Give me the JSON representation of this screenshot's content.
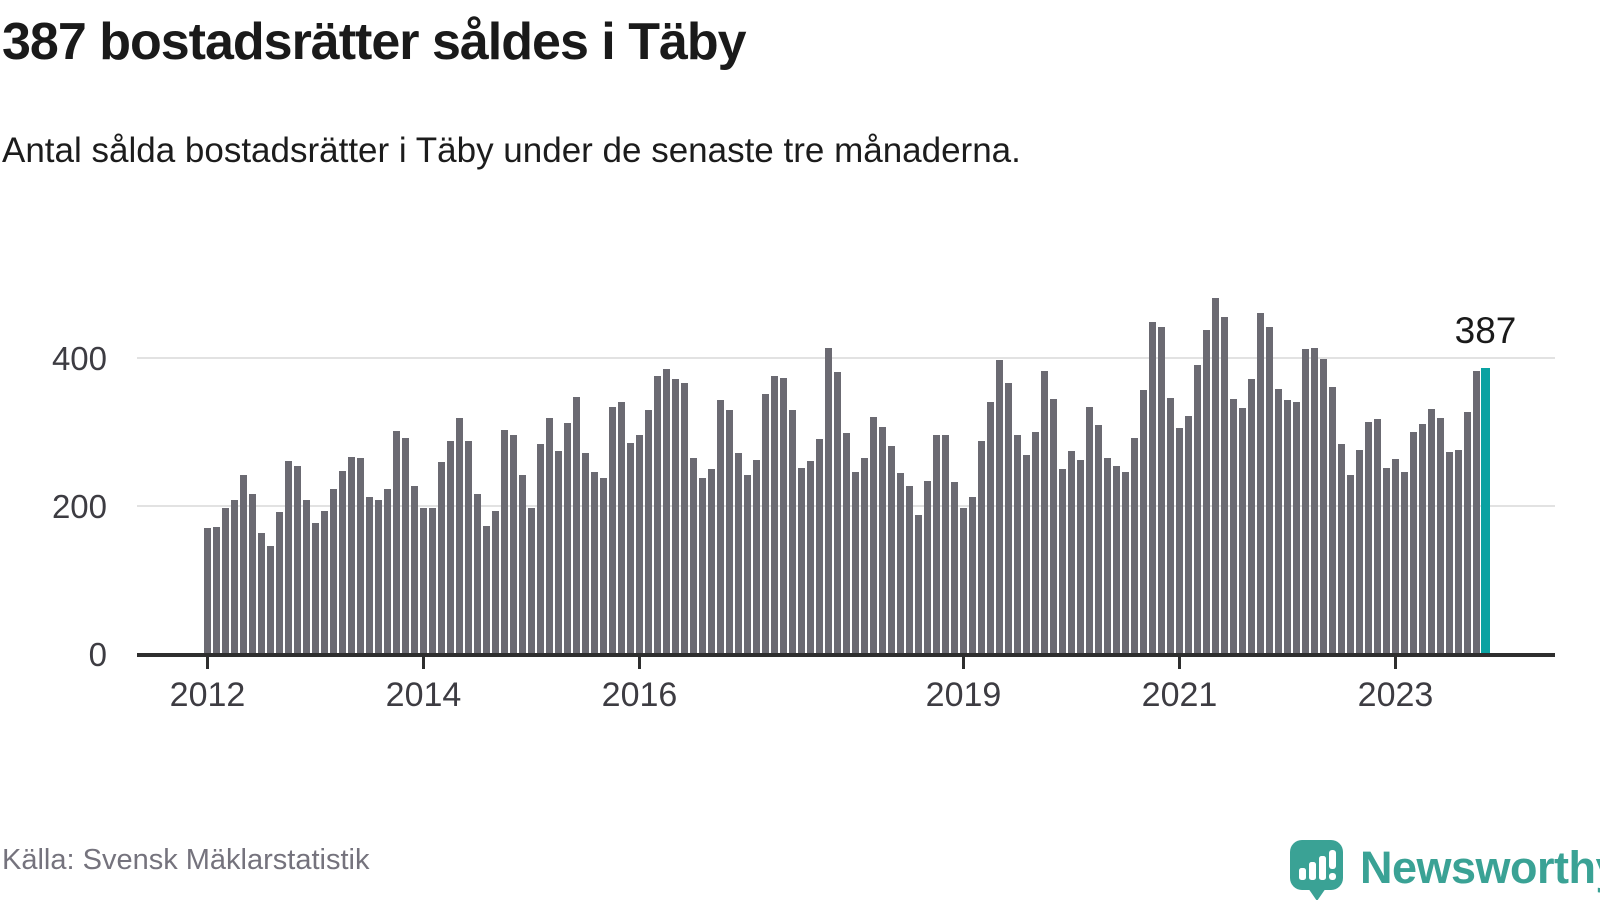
{
  "title": "387 bostadsrätter såldes i Täby",
  "subtitle": "Antal sålda bostadsrätter i Täby under de senaste tre månaderna.",
  "annotation": {
    "label": "387"
  },
  "source": "Källa: Svensk Mäklarstatistik",
  "logo": {
    "brand": "Newsworthy",
    "icon": "bar-chart-speech-bubble-icon"
  },
  "colors": {
    "bar": "#6b6a72",
    "highlight": "#0aa2a2",
    "grid": "#e2e2e2",
    "axis": "#2e2e2e",
    "text": "#1a1a1a",
    "tick_text": "#3d3c42",
    "source_text": "#75737d",
    "logo": "#3aa295"
  },
  "chart_data": {
    "type": "bar",
    "title": "387 bostadsrätter såldes i Täby",
    "subtitle": "Antal sålda bostadsrätter i Täby under de senaste tre månaderna.",
    "x_unit": "month",
    "start_month": "2012-01",
    "end_month": "2023-11",
    "ylim": [
      0,
      500
    ],
    "y_ticks": [
      0,
      200,
      400
    ],
    "y_tick_labels": [
      "0",
      "200",
      "400"
    ],
    "x_tick_labels": [
      "2012",
      "2014",
      "2016",
      "2019",
      "2021",
      "2023"
    ],
    "x_tick_month_indices": [
      0,
      24,
      48,
      84,
      108,
      132
    ],
    "grid": "horizontal-only",
    "legend": "none",
    "highlight_index": 142,
    "highlight_value_label": "387",
    "values": [
      170,
      171,
      196,
      207,
      241,
      215,
      163,
      145,
      191,
      260,
      254,
      208,
      176,
      192,
      223,
      247,
      266,
      264,
      211,
      207,
      222,
      301,
      292,
      226,
      196,
      197,
      259,
      287,
      318,
      288,
      216,
      172,
      193,
      302,
      295,
      242,
      197,
      283,
      319,
      274,
      312,
      347,
      271,
      245,
      237,
      334,
      340,
      285,
      296,
      330,
      376,
      385,
      372,
      366,
      264,
      237,
      249,
      343,
      329,
      271,
      242,
      262,
      351,
      375,
      373,
      330,
      251,
      261,
      290,
      413,
      381,
      298,
      246,
      265,
      320,
      307,
      280,
      244,
      227,
      187,
      233,
      295,
      295,
      232,
      196,
      211,
      287,
      341,
      397,
      366,
      295,
      268,
      299,
      382,
      345,
      250,
      274,
      262,
      333,
      309,
      265,
      254,
      246,
      292,
      357,
      449,
      442,
      346,
      305,
      322,
      391,
      438,
      482,
      456,
      345,
      332,
      372,
      461,
      442,
      358,
      343,
      341,
      412,
      414,
      399,
      361,
      283,
      242,
      275,
      313,
      317,
      251,
      263,
      245,
      299,
      310,
      331,
      319,
      272,
      275,
      327,
      382,
      387
    ]
  }
}
